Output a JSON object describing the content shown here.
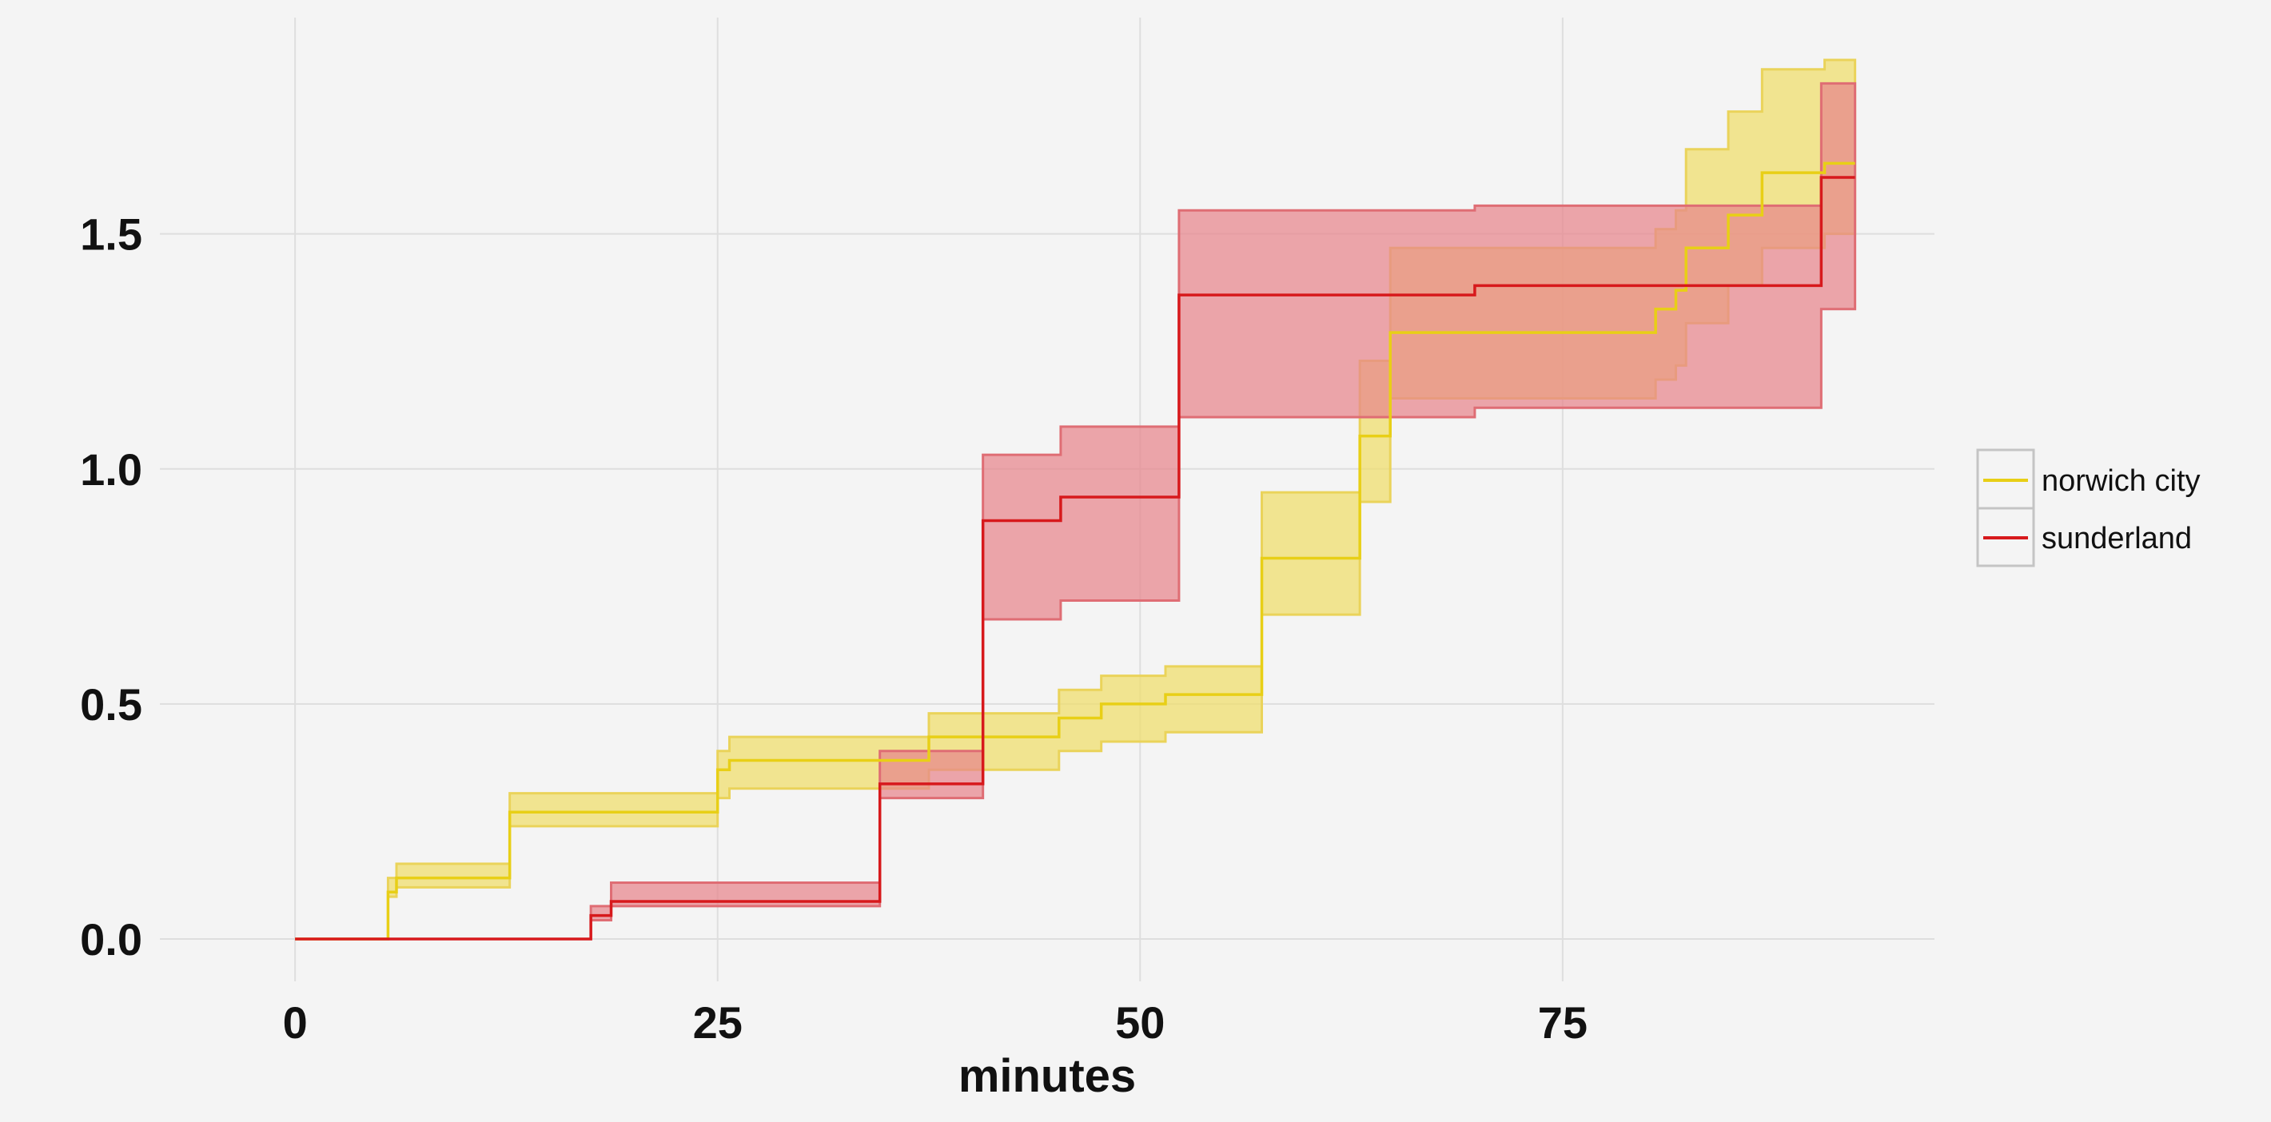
{
  "chart_data": {
    "type": "line",
    "step": true,
    "title": "",
    "xlabel": "minutes",
    "ylabel": "",
    "xlim": [
      -8,
      97
    ],
    "ylim": [
      -0.09,
      1.96
    ],
    "x_ticks": [
      0,
      25,
      50,
      75
    ],
    "y_ticks": [
      0.0,
      0.5,
      1.0,
      1.5
    ],
    "x_tick_labels": [
      "0",
      "25",
      "50",
      "75"
    ],
    "y_tick_labels": [
      "0.0",
      "0.5",
      "1.0",
      "1.5"
    ],
    "grid": true,
    "legend_position": "right",
    "series": [
      {
        "name": "norwich city",
        "color": "#e8cf16",
        "band_color": "#f0de69",
        "band_edge_color": "#ead35a",
        "steps": [
          {
            "x": 0,
            "y": 0.0,
            "lo": 0.0,
            "hi": 0.0
          },
          {
            "x": 5.5,
            "y": 0.1,
            "lo": 0.09,
            "hi": 0.13
          },
          {
            "x": 6,
            "y": 0.13,
            "lo": 0.11,
            "hi": 0.16
          },
          {
            "x": 12.7,
            "y": 0.27,
            "lo": 0.24,
            "hi": 0.31
          },
          {
            "x": 25,
            "y": 0.36,
            "lo": 0.3,
            "hi": 0.4
          },
          {
            "x": 25.7,
            "y": 0.38,
            "lo": 0.32,
            "hi": 0.43
          },
          {
            "x": 37.5,
            "y": 0.43,
            "lo": 0.36,
            "hi": 0.48
          },
          {
            "x": 45.2,
            "y": 0.47,
            "lo": 0.4,
            "hi": 0.53
          },
          {
            "x": 47.7,
            "y": 0.5,
            "lo": 0.42,
            "hi": 0.56
          },
          {
            "x": 51.5,
            "y": 0.52,
            "lo": 0.44,
            "hi": 0.58
          },
          {
            "x": 57.2,
            "y": 0.81,
            "lo": 0.69,
            "hi": 0.95
          },
          {
            "x": 63,
            "y": 1.07,
            "lo": 0.93,
            "hi": 1.23
          },
          {
            "x": 64.8,
            "y": 1.29,
            "lo": 1.15,
            "hi": 1.47
          },
          {
            "x": 80.5,
            "y": 1.34,
            "lo": 1.19,
            "hi": 1.51
          },
          {
            "x": 81.7,
            "y": 1.38,
            "lo": 1.22,
            "hi": 1.55
          },
          {
            "x": 82.3,
            "y": 1.47,
            "lo": 1.31,
            "hi": 1.68
          },
          {
            "x": 84.8,
            "y": 1.54,
            "lo": 1.39,
            "hi": 1.76
          },
          {
            "x": 86.8,
            "y": 1.63,
            "lo": 1.47,
            "hi": 1.85
          },
          {
            "x": 90.5,
            "y": 1.65,
            "lo": 1.5,
            "hi": 1.87
          },
          {
            "x": 92.3,
            "y": 1.65,
            "lo": 1.5,
            "hi": 1.87
          }
        ]
      },
      {
        "name": "sunderland",
        "color": "#d7191c",
        "band_color": "#e8858c",
        "band_edge_color": "#df6d74",
        "steps": [
          {
            "x": 0,
            "y": 0.0,
            "lo": 0.0,
            "hi": 0.0
          },
          {
            "x": 17.5,
            "y": 0.05,
            "lo": 0.04,
            "hi": 0.07
          },
          {
            "x": 18.7,
            "y": 0.08,
            "lo": 0.07,
            "hi": 0.12
          },
          {
            "x": 34.6,
            "y": 0.33,
            "lo": 0.3,
            "hi": 0.4
          },
          {
            "x": 40.7,
            "y": 0.89,
            "lo": 0.68,
            "hi": 1.03
          },
          {
            "x": 45.3,
            "y": 0.94,
            "lo": 0.72,
            "hi": 1.09
          },
          {
            "x": 52.3,
            "y": 1.37,
            "lo": 1.11,
            "hi": 1.55
          },
          {
            "x": 69.8,
            "y": 1.39,
            "lo": 1.13,
            "hi": 1.56
          },
          {
            "x": 90.3,
            "y": 1.62,
            "lo": 1.34,
            "hi": 1.82
          },
          {
            "x": 92.3,
            "y": 1.62,
            "lo": 1.34,
            "hi": 1.82
          }
        ]
      }
    ]
  }
}
